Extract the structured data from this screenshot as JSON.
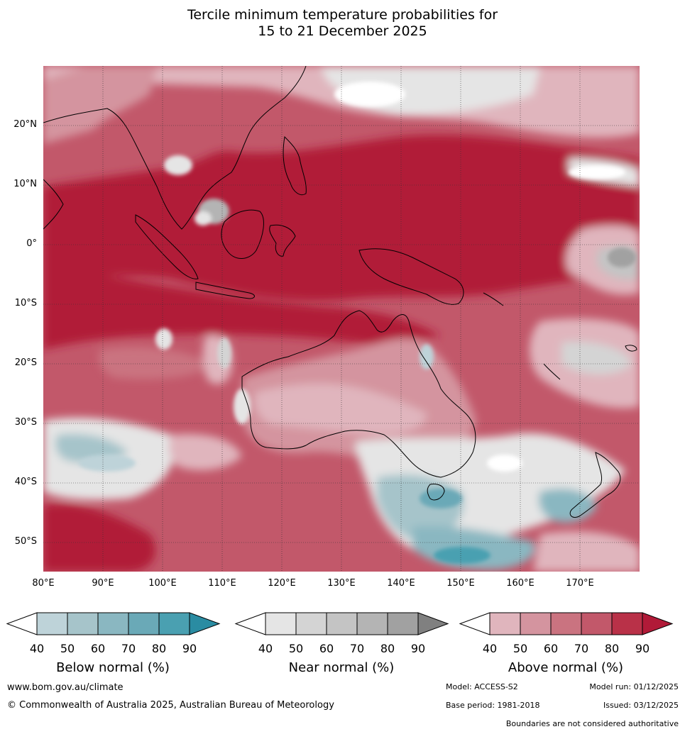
{
  "title_line1": "Tercile minimum temperature probabilities for",
  "title_line2": "15 to 21 December 2025",
  "map": {
    "projection": "equirectangular",
    "lon_range": [
      80,
      180
    ],
    "lat_range": [
      -55,
      30
    ],
    "lat_labels": [
      "20°N",
      "10°N",
      "0°",
      "10°S",
      "20°S",
      "30°S",
      "40°S",
      "50°S"
    ],
    "lon_labels": [
      "80°E",
      "90°E",
      "100°E",
      "110°E",
      "120°E",
      "130°E",
      "140°E",
      "150°E",
      "160°E",
      "170°E"
    ],
    "gridlines": "dotted"
  },
  "legends": [
    {
      "title": "Below normal (%)",
      "ticks": [
        "40",
        "50",
        "60",
        "70",
        "80",
        "90"
      ],
      "colors": [
        "#ffffff",
        "#bed3d9",
        "#a6c4ca",
        "#8ab7c1",
        "#6aa9b7",
        "#4aa0b1",
        "#2a8ca2"
      ]
    },
    {
      "title": "Near normal (%)",
      "ticks": [
        "40",
        "50",
        "60",
        "70",
        "80",
        "90"
      ],
      "colors": [
        "#ffffff",
        "#e5e5e5",
        "#d4d4d4",
        "#c4c4c4",
        "#b4b4b4",
        "#a1a1a1",
        "#808080"
      ]
    },
    {
      "title": "Above normal (%)",
      "ticks": [
        "40",
        "50",
        "60",
        "70",
        "80",
        "90"
      ],
      "colors": [
        "#ffffff",
        "#e0b5bd",
        "#d4949f",
        "#ca7380",
        "#c2586a",
        "#b93148",
        "#b11a38"
      ]
    }
  ],
  "footer": {
    "website": "www.bom.gov.au/climate",
    "copyright": "© Commonwealth of Australia 2025, Australian Bureau of Meteorology",
    "model": "Model: ACCESS-S2",
    "model_run": "Model run: 01/12/2025",
    "base_period": "Base period: 1981-2018",
    "issued": "Issued: 03/12/2025",
    "disclaimer": "Boundaries are not considered authoritative"
  }
}
